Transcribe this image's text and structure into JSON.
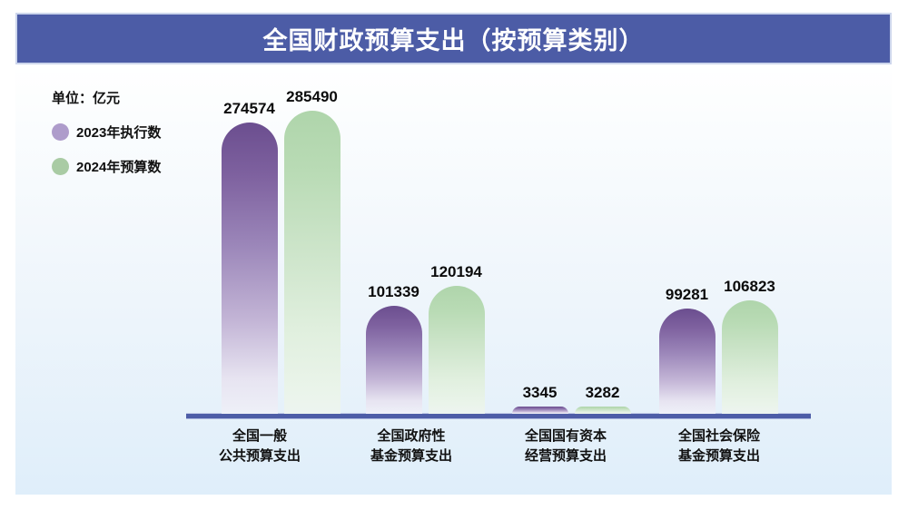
{
  "header": {
    "title": "全国财政预算支出（按预算类别）",
    "bar_color": "#4C5CA6"
  },
  "unit_label": "单位：亿元",
  "legend": {
    "items": [
      {
        "label": "2023年执行数",
        "color": "#AE9CCB"
      },
      {
        "label": "2024年预算数",
        "color": "#A9CBA4"
      }
    ]
  },
  "axis": {
    "color": "#4D5DA7"
  },
  "chart_data": {
    "type": "bar",
    "title": "全国财政预算支出（按预算类别）",
    "unit": "亿元",
    "categories": [
      "全国一般\n公共预算支出",
      "全国政府性\n基金预算支出",
      "全国国有资本\n经营预算支出",
      "全国社会保险\n基金预算支出"
    ],
    "series": [
      {
        "name": "2023年执行数",
        "values": [
          274574,
          101339,
          3345,
          99281
        ],
        "color_top": "#6B4E8F",
        "color_bottom": "#EEF0F8"
      },
      {
        "name": "2024年预算数",
        "values": [
          285490,
          120194,
          3282,
          106823
        ],
        "color_top": "#AFD5AB",
        "color_bottom": "#EDF4F0"
      }
    ],
    "ylim": [
      0,
      285490
    ],
    "grid": false,
    "legend_position": "top-left",
    "value_labels": true,
    "xlabel": "",
    "ylabel": "单位：亿元"
  }
}
